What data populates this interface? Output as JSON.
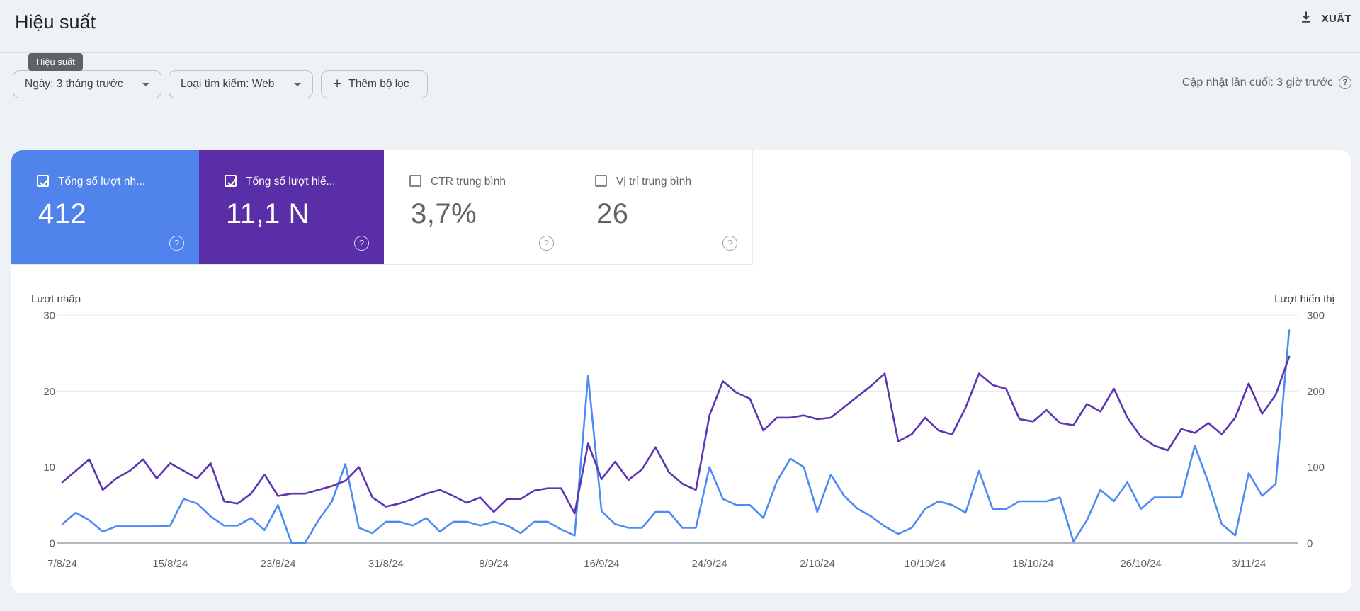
{
  "header": {
    "title": "Hiệu suất",
    "export_label": "XUẤT"
  },
  "nav_tooltip": "Hiệu suất",
  "filters": {
    "date_label": "Ngày: 3 tháng trước",
    "search_type_label": "Loại tìm kiếm: Web",
    "add_filter_label": "Thêm bộ lọc",
    "last_updated": "Cập nhật lần cuối: 3 giờ trước"
  },
  "metrics": [
    {
      "label": "Tổng số lượt nh...",
      "value": "412",
      "checked": true,
      "color": "#5083ec",
      "text": "light"
    },
    {
      "label": "Tổng số lượt hiể...",
      "value": "11,1 N",
      "checked": true,
      "color": "#5a2ea6",
      "text": "light"
    },
    {
      "label": "CTR trung bình",
      "value": "3,7%",
      "checked": false,
      "color": "#ffffff",
      "text": "dark"
    },
    {
      "label": "Vị trí trung bình",
      "value": "26",
      "checked": false,
      "color": "#ffffff",
      "text": "dark"
    }
  ],
  "chart_data": {
    "type": "line",
    "days": 92,
    "date_range": "7/8/24 - 6/11/24",
    "left_axis": {
      "label": "Lượt nhấp",
      "ticks": [
        0,
        10,
        20,
        30
      ],
      "max": 30
    },
    "right_axis": {
      "label": "Lượt hiển thị",
      "ticks": [
        0,
        100,
        200,
        300
      ],
      "max": 300
    },
    "x_tick_days": [
      0,
      8,
      16,
      24,
      32,
      40,
      48,
      56,
      64,
      72,
      80,
      88
    ],
    "x_tick_labels": [
      "7/8/24",
      "15/8/24",
      "23/8/24",
      "31/8/24",
      "8/9/24",
      "16/9/24",
      "24/9/24",
      "2/10/24",
      "10/10/24",
      "18/10/24",
      "26/10/24",
      "3/11/24"
    ],
    "grid": true,
    "legend_position": "none",
    "series": [
      {
        "name": "Lượt nhấp",
        "axis": "left",
        "color": "#4c8bf5",
        "values": [
          2.5,
          4,
          3,
          1.5,
          2.2,
          2.2,
          2.2,
          2.2,
          2.3,
          5.8,
          5.2,
          3.5,
          2.3,
          2.3,
          3.3,
          1.7,
          5,
          0,
          0,
          3,
          5.5,
          10.4,
          2,
          1.3,
          2.8,
          2.8,
          2.3,
          3.3,
          1.5,
          2.8,
          2.8,
          2.3,
          2.8,
          2.3,
          1.3,
          2.8,
          2.8,
          1.8,
          1,
          22,
          4.2,
          2.5,
          2,
          2,
          4.1,
          4.1,
          2,
          2,
          10,
          5.8,
          5,
          5,
          3.3,
          8.1,
          11.1,
          10,
          4.1,
          9,
          6.2,
          4.5,
          3.5,
          2.2,
          1.2,
          2,
          4.5,
          5.5,
          5,
          4,
          9.5,
          4.5,
          4.5,
          5.5,
          5.5,
          5.5,
          6,
          0.2,
          3,
          7,
          5.5,
          8,
          4.5,
          6,
          6,
          6,
          12.8,
          8,
          2.5,
          1,
          9.2,
          6.2,
          7.8,
          28
        ]
      },
      {
        "name": "Lượt hiển thị",
        "axis": "right",
        "color": "#5e35b1",
        "values": [
          80,
          95,
          110,
          70,
          85,
          95,
          110,
          85,
          105,
          95,
          85,
          105,
          55,
          52,
          65,
          90,
          62,
          65,
          65,
          70,
          75,
          82,
          100,
          60,
          48,
          52,
          58,
          65,
          70,
          62,
          53,
          60,
          41,
          58,
          58,
          69,
          72,
          72,
          39,
          131,
          84,
          107,
          83,
          97,
          126,
          93,
          78,
          70,
          168,
          213,
          198,
          190,
          148,
          165,
          165,
          168,
          163,
          165,
          179,
          193,
          207,
          223,
          134,
          143,
          165,
          148,
          143,
          178,
          223,
          208,
          203,
          163,
          160,
          175,
          158,
          155,
          183,
          173,
          203,
          165,
          140,
          128,
          122,
          150,
          145,
          158,
          143,
          165,
          210,
          170,
          195,
          245
        ]
      }
    ]
  }
}
